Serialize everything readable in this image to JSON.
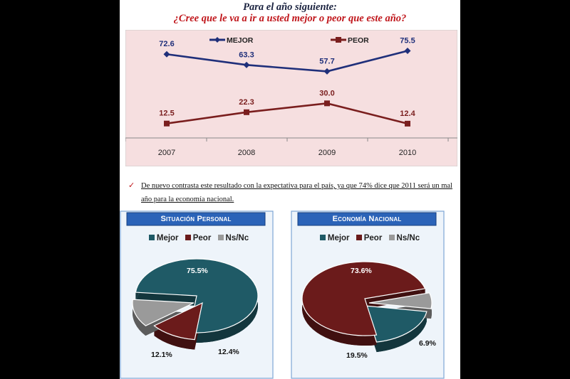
{
  "header": {
    "line1": "Para el año siguiente:",
    "line2": "¿Cree que le va a ir a usted mejor o peor que este año?"
  },
  "note": "De nuevo contrasta este resultado con la expectativa para el país, ya que 74% dice que 2011 será un mal año para la economía nacional.",
  "chart_data": [
    {
      "type": "line",
      "title": "",
      "categories": [
        "2007",
        "2008",
        "2009",
        "2010"
      ],
      "series": [
        {
          "name": "MEJOR",
          "values": [
            72.6,
            63.3,
            57.7,
            75.5
          ],
          "labels": [
            "72.6",
            "63.3",
            "57.7",
            "75.5"
          ],
          "color": "#1f2f7a"
        },
        {
          "name": "PEOR",
          "values": [
            12.5,
            22.3,
            30.0,
            12.4
          ],
          "labels": [
            "12.5",
            "22.3",
            "30.0",
            "12.4"
          ],
          "color": "#7a1e1e"
        }
      ],
      "ylim": [
        0,
        90
      ],
      "legend": "top",
      "grid": false,
      "background": "#f6dfe0"
    },
    {
      "type": "pie",
      "title": "Situación Personal",
      "categories": [
        "Mejor",
        "Peor",
        "Ns/Nc"
      ],
      "values": [
        75.5,
        12.4,
        12.1
      ],
      "labels": [
        "75.5%",
        "12.4%",
        "12.1%"
      ],
      "colors": [
        "#1f5a66",
        "#6b1b1b",
        "#9a9a9a"
      ],
      "legend": "top"
    },
    {
      "type": "pie",
      "title": "Economía Nacional",
      "categories": [
        "Mejor",
        "Peor",
        "Ns/Nc"
      ],
      "values": [
        19.5,
        73.6,
        6.9
      ],
      "labels": [
        "19.5%",
        "73.6%",
        "6.9%"
      ],
      "colors": [
        "#1f5a66",
        "#6b1b1b",
        "#9a9a9a"
      ],
      "legend": "top"
    }
  ]
}
